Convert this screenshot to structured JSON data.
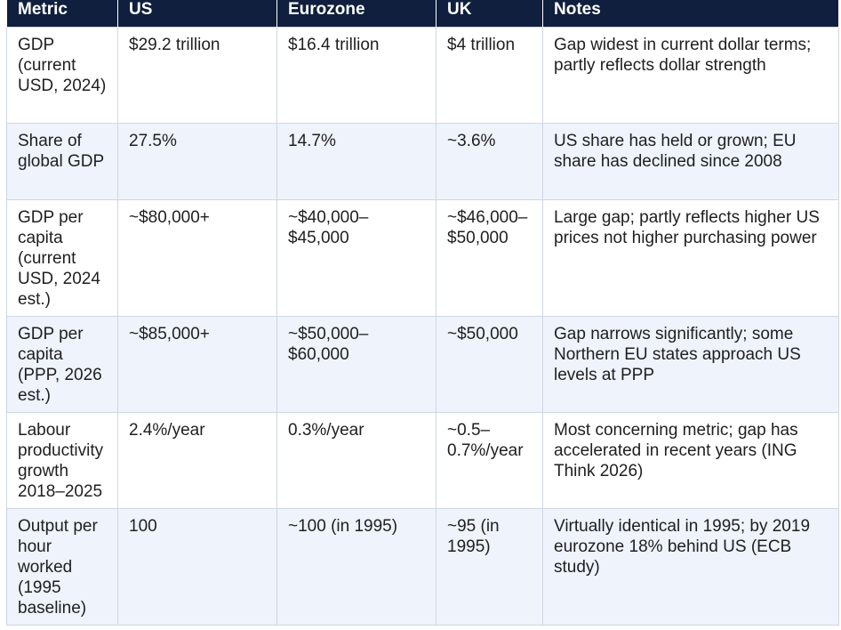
{
  "table": {
    "headers": [
      "Metric",
      "US",
      "Eurozone",
      "UK",
      "Notes"
    ],
    "rows": [
      {
        "metric": "GDP (current USD, 2024)",
        "us": "$29.2 trillion",
        "eurozone": "$16.4 trillion",
        "uk": "$4 trillion",
        "notes": "Gap widest in current dollar terms; partly reflects dollar strength"
      },
      {
        "metric": "Share of global GDP",
        "us": "27.5%",
        "eurozone": "14.7%",
        "uk": "~3.6%",
        "notes": "US share has held or grown; EU share has declined since 2008"
      },
      {
        "metric": "GDP per capita (current USD, 2024 est.)",
        "us": "~$80,000+",
        "eurozone": "~$40,000–$45,000",
        "uk": "~$46,000–$50,000",
        "notes": "Large gap; partly reflects higher US prices not higher purchasing power"
      },
      {
        "metric": "GDP per capita (PPP, 2026 est.)",
        "us": "~$85,000+",
        "eurozone": "~$50,000–$60,000",
        "uk": "~$50,000",
        "notes": "Gap narrows significantly; some Northern EU states approach US levels at PPP"
      },
      {
        "metric": "Labour productivity growth 2018–2025",
        "us": "2.4%/year",
        "eurozone": "0.3%/year",
        "uk": "~0.5–0.7%/year",
        "notes": "Most concerning metric; gap has accelerated in recent years (ING Think 2026)"
      },
      {
        "metric": "Output per hour worked (1995 baseline)",
        "us": "100",
        "eurozone": "~100 (in 1995)",
        "uk": "~95 (in 1995)",
        "notes": "Virtually identical in 1995; by 2019 eurozone 18% behind US (ECB study)"
      }
    ]
  },
  "colors": {
    "header_bg": "#0f1f3d",
    "header_text": "#ffffff",
    "row_alt_bg": "#eef3fc",
    "border": "#cfd6e3"
  }
}
